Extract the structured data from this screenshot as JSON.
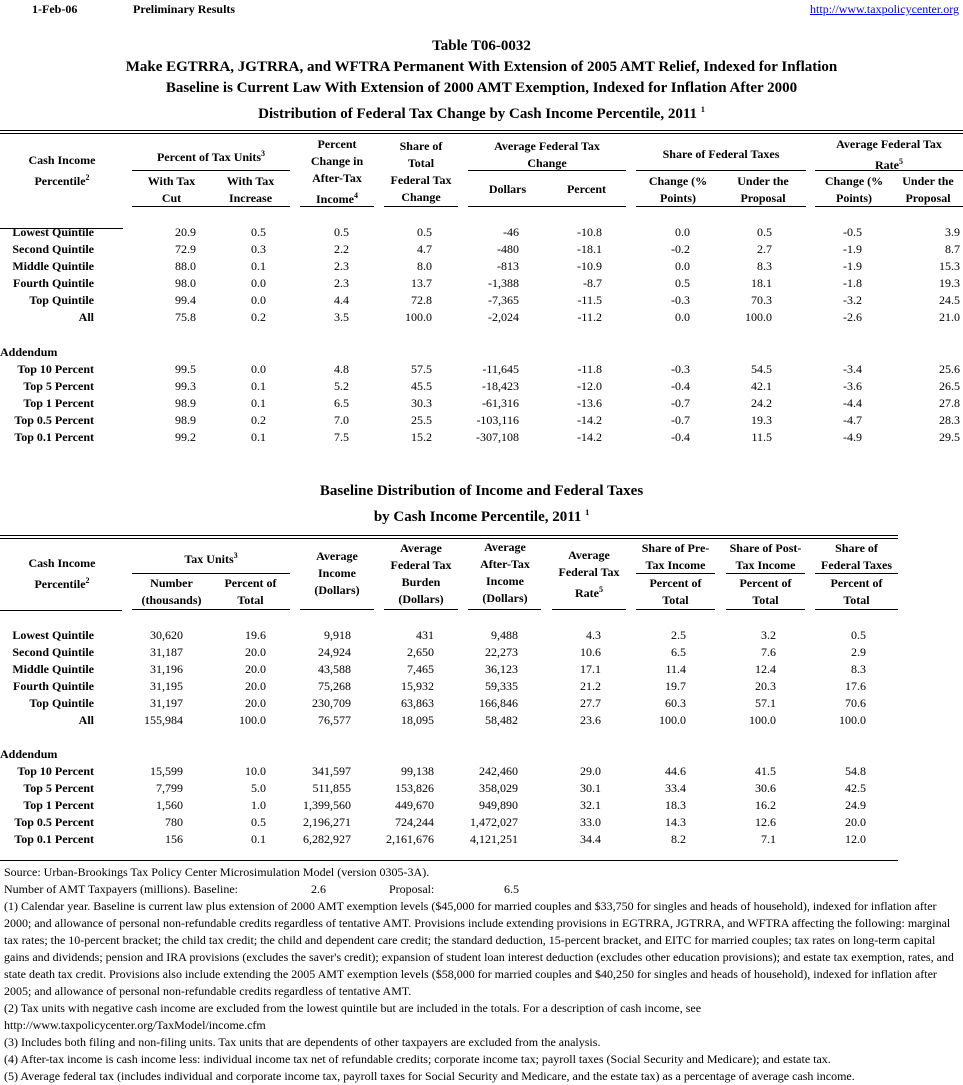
{
  "header": {
    "date": "1-Feb-06",
    "status": "Preliminary Results",
    "link": "http://www.taxpolicycenter.org"
  },
  "titles": [
    "Table T06-0032",
    "Make EGTRRA, JGTRRA, and WFTRA Permanent With Extension of 2005 AMT Relief, Indexed for Inflation",
    "Baseline is Current Law With Extension of 2000 AMT Exemption, Indexed for Inflation After 2000",
    "Distribution of Federal Tax Change by Cash Income Percentile, 2011"
  ],
  "title_sup": "1",
  "table1": {
    "headers": {
      "percentile": "Cash Income",
      "percentile2": "Percentile",
      "pct_units": "Percent of Tax Units",
      "with_cut": "With Tax",
      "with_cut2": "Cut",
      "with_inc": "With Tax",
      "with_inc2": "Increase",
      "pct_change": "Percent",
      "pct_change2": "Change in",
      "pct_change3": "After-Tax",
      "pct_change4": "Income",
      "share": "Share of",
      "share2": "Total",
      "share3": "Federal Tax",
      "share4": "Change",
      "avg_change": "Average Federal Tax",
      "avg_change2": "Change",
      "dollars": "Dollars",
      "percent": "Percent",
      "share_fed": "Share of Federal Taxes",
      "change_pts": "Change (%",
      "change_pts2": "Points)",
      "under": "Under the",
      "under2": "Proposal",
      "avg_rate": "Average Federal Tax",
      "avg_rate2": "Rate",
      "change_pts_b": "Change (%",
      "change_pts_b2": "Points)",
      "under_b": "Under the",
      "under_b2": "Proposal"
    },
    "rows": [
      [
        "Lowest Quintile",
        "20.9",
        "0.5",
        "0.5",
        "0.5",
        "-46",
        "-10.8",
        "0.0",
        "0.5",
        "-0.5",
        "3.9"
      ],
      [
        "Second Quintile",
        "72.9",
        "0.3",
        "2.2",
        "4.7",
        "-480",
        "-18.1",
        "-0.2",
        "2.7",
        "-1.9",
        "8.7"
      ],
      [
        "Middle Quintile",
        "88.0",
        "0.1",
        "2.3",
        "8.0",
        "-813",
        "-10.9",
        "0.0",
        "8.3",
        "-1.9",
        "15.3"
      ],
      [
        "Fourth Quintile",
        "98.0",
        "0.0",
        "2.3",
        "13.7",
        "-1,388",
        "-8.7",
        "0.5",
        "18.1",
        "-1.8",
        "19.3"
      ],
      [
        "Top Quintile",
        "99.4",
        "0.0",
        "4.4",
        "72.8",
        "-7,365",
        "-11.5",
        "-0.3",
        "70.3",
        "-3.2",
        "24.5"
      ],
      [
        "All",
        "75.8",
        "0.2",
        "3.5",
        "100.0",
        "-2,024",
        "-11.2",
        "0.0",
        "100.0",
        "-2.6",
        "21.0"
      ]
    ],
    "addendum_label": "Addendum",
    "addendum": [
      [
        "Top 10 Percent",
        "99.5",
        "0.0",
        "4.8",
        "57.5",
        "-11,645",
        "-11.8",
        "-0.3",
        "54.5",
        "-3.4",
        "25.6"
      ],
      [
        "Top 5 Percent",
        "99.3",
        "0.1",
        "5.2",
        "45.5",
        "-18,423",
        "-12.0",
        "-0.4",
        "42.1",
        "-3.6",
        "26.5"
      ],
      [
        "Top 1 Percent",
        "98.9",
        "0.1",
        "6.5",
        "30.3",
        "-61,316",
        "-13.6",
        "-0.7",
        "24.2",
        "-4.4",
        "27.8"
      ],
      [
        "Top 0.5 Percent",
        "98.9",
        "0.2",
        "7.0",
        "25.5",
        "-103,116",
        "-14.2",
        "-0.7",
        "19.3",
        "-4.7",
        "28.3"
      ],
      [
        "Top 0.1 Percent",
        "99.2",
        "0.1",
        "7.5",
        "15.2",
        "-307,108",
        "-14.2",
        "-0.4",
        "11.5",
        "-4.9",
        "29.5"
      ]
    ]
  },
  "table2_titles": [
    "Baseline Distribution of Income and Federal Taxes",
    "by Cash Income Percentile, 2011"
  ],
  "table2_sup": "1",
  "table2": {
    "headers": {
      "percentile": "Cash Income",
      "percentile2": "Percentile",
      "tax_units": "Tax Units",
      "number": "Number",
      "number2": "(thousands)",
      "pct_total": "Percent of",
      "pct_total2": "Total",
      "avg_income": "Average",
      "avg_income2": "Income",
      "avg_income3": "(Dollars)",
      "burden": "Average",
      "burden2": "Federal Tax",
      "burden3": "Burden",
      "burden4": "(Dollars)",
      "after": "Average",
      "after2": "After-Tax",
      "after3": "Income",
      "after4": "(Dollars)",
      "rate": "Average",
      "rate2": "Federal Tax",
      "rate3": "Rate",
      "pre": "Share of Pre-",
      "pre2": "Tax Income",
      "post": "Share of Post-",
      "post2": "Tax Income",
      "fed": "Share of",
      "fed2": "Federal Taxes",
      "pot": "Percent of",
      "pot2": "Total"
    },
    "rows": [
      [
        "Lowest Quintile",
        "30,620",
        "19.6",
        "9,918",
        "431",
        "9,488",
        "4.3",
        "2.5",
        "3.2",
        "0.5"
      ],
      [
        "Second Quintile",
        "31,187",
        "20.0",
        "24,924",
        "2,650",
        "22,273",
        "10.6",
        "6.5",
        "7.6",
        "2.9"
      ],
      [
        "Middle Quintile",
        "31,196",
        "20.0",
        "43,588",
        "7,465",
        "36,123",
        "17.1",
        "11.4",
        "12.4",
        "8.3"
      ],
      [
        "Fourth Quintile",
        "31,195",
        "20.0",
        "75,268",
        "15,932",
        "59,335",
        "21.2",
        "19.7",
        "20.3",
        "17.6"
      ],
      [
        "Top Quintile",
        "31,197",
        "20.0",
        "230,709",
        "63,863",
        "166,846",
        "27.7",
        "60.3",
        "57.1",
        "70.6"
      ],
      [
        "All",
        "155,984",
        "100.0",
        "76,577",
        "18,095",
        "58,482",
        "23.6",
        "100.0",
        "100.0",
        "100.0"
      ]
    ],
    "addendum_label": "Addendum",
    "addendum": [
      [
        "Top 10 Percent",
        "15,599",
        "10.0",
        "341,597",
        "99,138",
        "242,460",
        "29.0",
        "44.6",
        "41.5",
        "54.8"
      ],
      [
        "Top 5 Percent",
        "7,799",
        "5.0",
        "511,855",
        "153,826",
        "358,029",
        "30.1",
        "33.4",
        "30.6",
        "42.5"
      ],
      [
        "Top 1 Percent",
        "1,560",
        "1.0",
        "1,399,560",
        "449,670",
        "949,890",
        "32.1",
        "18.3",
        "16.2",
        "24.9"
      ],
      [
        "Top 0.5 Percent",
        "780",
        "0.5",
        "2,196,271",
        "724,244",
        "1,472,027",
        "33.0",
        "14.3",
        "12.6",
        "20.0"
      ],
      [
        "Top 0.1 Percent",
        "156",
        "0.1",
        "6,282,927",
        "2,161,676",
        "4,121,251",
        "34.4",
        "8.2",
        "7.1",
        "12.0"
      ]
    ]
  },
  "footnotes": {
    "source": "Source: Urban-Brookings Tax Policy Center Microsimulation Model (version 0305-3A).",
    "amt_label": "Number of AMT Taxpayers (millions).  Baseline:",
    "amt_baseline": "2.6",
    "amt_proposal_label": "Proposal:",
    "amt_proposal": "6.5",
    "notes": [
      "(1) Calendar year. Baseline is current law plus extension of 2000 AMT exemption levels ($45,000 for married couples and $33,750 for singles and heads of household), indexed for inflation after 2000; and allowance of personal non-refundable credits regardless of tentative AMT.  Provisions include extending provisions in EGTRRA, JGTRRA, and WFTRA affecting the following: marginal tax rates; the 10-percent bracket; the child tax credit; the child and dependent care credit; the standard deduction, 15-percent bracket, and EITC for married couples; tax rates on long-term capital gains and dividends; pension and IRA provisions (excludes the saver's credit); expansion of student loan interest deduction (excludes other education provisions); and estate tax exemption, rates, and state death tax credit.  Provisions also include extending the 2005 AMT exemption levels ($58,000 for married couples and $40,250 for singles and heads of household), indexed for inflation after 2005; and allowance of personal non-refundable credits regardless of tentative AMT.",
      "(2) Tax units with negative cash income are excluded from the lowest quintile but are included in the totals. For a description of cash income, see http://www.taxpolicycenter.org/TaxModel/income.cfm",
      "(3) Includes both filing and non-filing units.  Tax units that are dependents of other taxpayers are excluded from the analysis.",
      "(4) After-tax income is cash income less: individual income tax net of refundable credits; corporate income tax; payroll taxes (Social Security and Medicare); and estate tax.",
      "(5) Average federal tax (includes individual and corporate income tax, payroll taxes for Social Security and Medicare, and the estate tax) as a percentage of average cash income."
    ]
  }
}
